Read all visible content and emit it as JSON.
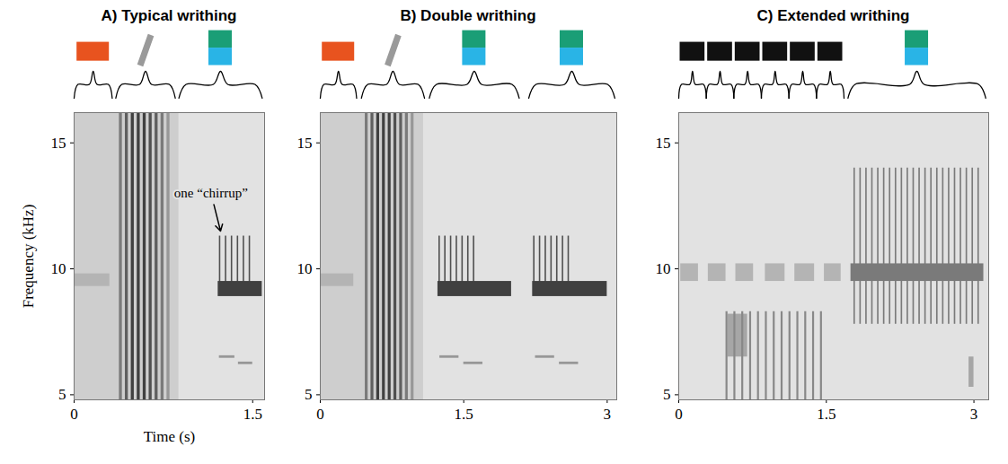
{
  "chart_data": [
    {
      "type": "spectrogram",
      "title": "A) Typical writhing",
      "xlabel": "Time (s)",
      "ylabel": "Frequency (kHz)",
      "xlim": [
        0,
        1.6
      ],
      "xticks": [
        0,
        1.5
      ],
      "ylim": [
        4.8,
        16.2
      ],
      "yticks": [
        5,
        10,
        15
      ],
      "syllables": [
        {
          "t0": 0,
          "t1": 0.32,
          "marker": "rect",
          "color": "#e8531f"
        },
        {
          "t0": 0.35,
          "t1": 0.85,
          "marker": "slash",
          "color": "#9a9a9a"
        },
        {
          "t0": 0.88,
          "t1": 1.58,
          "marker": "stacked",
          "colors": [
            "#1a9e76",
            "#29b4e6"
          ]
        }
      ],
      "annotations": [
        {
          "text": "one “chirrup”",
          "x": 1.15,
          "y": 13.0,
          "arrow_x": 1.23,
          "arrow_y": 11.5
        }
      ],
      "energy": [
        [
          0,
          0.88,
          4.8,
          16.2,
          0.3
        ],
        [
          0,
          0.3,
          9.3,
          9.8,
          0.4
        ],
        [
          0.38,
          0.405,
          4.8,
          16.2,
          0.6
        ],
        [
          0.43,
          0.455,
          4.8,
          16.2,
          0.7
        ],
        [
          0.48,
          0.505,
          4.8,
          16.2,
          0.8
        ],
        [
          0.53,
          0.555,
          4.8,
          16.2,
          0.8
        ],
        [
          0.58,
          0.605,
          4.8,
          16.2,
          0.8
        ],
        [
          0.63,
          0.655,
          4.8,
          16.2,
          0.75
        ],
        [
          0.68,
          0.705,
          4.8,
          16.2,
          0.7
        ],
        [
          0.73,
          0.755,
          4.8,
          16.2,
          0.6
        ],
        [
          0.78,
          0.805,
          4.8,
          16.2,
          0.5
        ],
        [
          1.22,
          1.232,
          9.0,
          11.3,
          0.75
        ],
        [
          1.27,
          1.282,
          9.0,
          11.3,
          0.75
        ],
        [
          1.32,
          1.332,
          9.0,
          11.3,
          0.75
        ],
        [
          1.37,
          1.382,
          9.0,
          11.3,
          0.75
        ],
        [
          1.42,
          1.432,
          9.0,
          11.3,
          0.75
        ],
        [
          1.47,
          1.482,
          9.0,
          11.3,
          0.75
        ],
        [
          1.21,
          1.58,
          8.9,
          9.5,
          0.8
        ],
        [
          1.22,
          1.35,
          6.45,
          6.55,
          0.5
        ],
        [
          1.38,
          1.5,
          6.2,
          6.3,
          0.5
        ]
      ]
    },
    {
      "type": "spectrogram",
      "title": "B) Double writhing",
      "xlim": [
        0,
        3.1
      ],
      "xticks": [
        0,
        1.5,
        3
      ],
      "ylim": [
        4.8,
        16.2
      ],
      "yticks": [
        5,
        10,
        15
      ],
      "syllables": [
        {
          "t0": 0,
          "t1": 0.38,
          "marker": "rect",
          "color": "#e8531f"
        },
        {
          "t0": 0.43,
          "t1": 1.09,
          "marker": "slash",
          "color": "#9a9a9a"
        },
        {
          "t0": 1.14,
          "t1": 2.08,
          "marker": "stacked",
          "colors": [
            "#1a9e76",
            "#29b4e6"
          ]
        },
        {
          "t0": 2.18,
          "t1": 3.08,
          "marker": "stacked",
          "colors": [
            "#1a9e76",
            "#29b4e6"
          ]
        }
      ],
      "energy": [
        [
          0,
          1.08,
          4.8,
          16.2,
          0.3
        ],
        [
          0,
          0.35,
          9.3,
          9.8,
          0.4
        ],
        [
          0.47,
          0.5,
          4.8,
          16.2,
          0.6
        ],
        [
          0.53,
          0.56,
          4.8,
          16.2,
          0.7
        ],
        [
          0.59,
          0.62,
          4.8,
          16.2,
          0.8
        ],
        [
          0.65,
          0.68,
          4.8,
          16.2,
          0.8
        ],
        [
          0.71,
          0.74,
          4.8,
          16.2,
          0.8
        ],
        [
          0.77,
          0.8,
          4.8,
          16.2,
          0.75
        ],
        [
          0.83,
          0.86,
          4.8,
          16.2,
          0.7
        ],
        [
          0.89,
          0.92,
          4.8,
          16.2,
          0.6
        ],
        [
          0.95,
          0.98,
          4.8,
          16.2,
          0.5
        ],
        [
          1.24,
          1.255,
          9.0,
          11.3,
          0.75
        ],
        [
          1.3,
          1.315,
          9.0,
          11.3,
          0.75
        ],
        [
          1.36,
          1.375,
          9.0,
          11.3,
          0.75
        ],
        [
          1.42,
          1.435,
          9.0,
          11.3,
          0.75
        ],
        [
          1.48,
          1.495,
          9.0,
          11.3,
          0.75
        ],
        [
          1.54,
          1.555,
          9.0,
          11.3,
          0.75
        ],
        [
          1.6,
          1.615,
          9.0,
          11.3,
          0.75
        ],
        [
          1.23,
          2.0,
          8.9,
          9.5,
          0.8
        ],
        [
          1.25,
          1.45,
          6.45,
          6.55,
          0.5
        ],
        [
          1.5,
          1.7,
          6.2,
          6.3,
          0.5
        ],
        [
          2.23,
          2.245,
          9.0,
          11.3,
          0.75
        ],
        [
          2.29,
          2.305,
          9.0,
          11.3,
          0.75
        ],
        [
          2.35,
          2.365,
          9.0,
          11.3,
          0.75
        ],
        [
          2.41,
          2.425,
          9.0,
          11.3,
          0.75
        ],
        [
          2.47,
          2.485,
          9.0,
          11.3,
          0.75
        ],
        [
          2.53,
          2.545,
          9.0,
          11.3,
          0.75
        ],
        [
          2.59,
          2.605,
          9.0,
          11.3,
          0.75
        ],
        [
          2.22,
          3.0,
          8.9,
          9.5,
          0.8
        ],
        [
          2.25,
          2.45,
          6.45,
          6.55,
          0.5
        ],
        [
          2.5,
          2.7,
          6.2,
          6.3,
          0.5
        ]
      ]
    },
    {
      "type": "spectrogram",
      "title": "C) Extended writhing",
      "xlim": [
        0,
        3.15
      ],
      "xticks": [
        0,
        1.5,
        3
      ],
      "ylim": [
        4.8,
        16.2
      ],
      "yticks": [
        5,
        10,
        15
      ],
      "syllables": [
        {
          "t0": 0,
          "t1": 0.28,
          "marker": "rect",
          "color": "#111111"
        },
        {
          "t0": 0.28,
          "t1": 0.56,
          "marker": "rect",
          "color": "#111111"
        },
        {
          "t0": 0.56,
          "t1": 0.84,
          "marker": "rect",
          "color": "#111111"
        },
        {
          "t0": 0.84,
          "t1": 1.12,
          "marker": "rect",
          "color": "#111111"
        },
        {
          "t0": 1.12,
          "t1": 1.4,
          "marker": "rect",
          "color": "#111111"
        },
        {
          "t0": 1.4,
          "t1": 1.68,
          "marker": "rect",
          "color": "#111111"
        },
        {
          "t0": 1.72,
          "t1": 3.12,
          "marker": "stacked",
          "colors": [
            "#1a9e76",
            "#29b4e6"
          ]
        }
      ],
      "energy": [
        [
          0.02,
          0.2,
          9.5,
          10.2,
          0.4
        ],
        [
          0.3,
          0.48,
          9.5,
          10.2,
          0.4
        ],
        [
          0.58,
          0.76,
          9.5,
          10.2,
          0.4
        ],
        [
          0.88,
          1.08,
          9.5,
          10.2,
          0.4
        ],
        [
          1.18,
          1.38,
          9.5,
          10.2,
          0.4
        ],
        [
          1.48,
          1.65,
          9.5,
          10.2,
          0.4
        ],
        [
          0.5,
          0.7,
          6.5,
          8.2,
          0.45
        ],
        [
          0.48,
          0.5,
          4.8,
          8.3,
          0.55
        ],
        [
          0.56,
          0.58,
          4.8,
          8.3,
          0.55
        ],
        [
          0.64,
          0.66,
          4.8,
          8.3,
          0.55
        ],
        [
          0.72,
          0.74,
          4.8,
          8.3,
          0.55
        ],
        [
          0.8,
          0.82,
          4.8,
          8.3,
          0.55
        ],
        [
          0.88,
          0.9,
          4.8,
          8.3,
          0.55
        ],
        [
          0.96,
          0.98,
          4.8,
          8.3,
          0.55
        ],
        [
          1.04,
          1.06,
          4.8,
          8.3,
          0.55
        ],
        [
          1.12,
          1.14,
          4.8,
          8.3,
          0.55
        ],
        [
          1.2,
          1.22,
          4.8,
          8.3,
          0.55
        ],
        [
          1.28,
          1.3,
          4.8,
          8.3,
          0.55
        ],
        [
          1.36,
          1.38,
          4.8,
          8.3,
          0.55
        ],
        [
          1.44,
          1.46,
          4.8,
          8.3,
          0.55
        ],
        [
          1.78,
          1.795,
          7.8,
          14.0,
          0.6
        ],
        [
          1.84,
          1.855,
          7.8,
          14.0,
          0.6
        ],
        [
          1.9,
          1.915,
          7.8,
          14.0,
          0.6
        ],
        [
          1.96,
          1.975,
          7.8,
          14.0,
          0.6
        ],
        [
          2.02,
          2.035,
          7.8,
          14.0,
          0.6
        ],
        [
          2.08,
          2.095,
          7.8,
          14.0,
          0.6
        ],
        [
          2.14,
          2.155,
          7.8,
          14.0,
          0.6
        ],
        [
          2.2,
          2.215,
          7.8,
          14.0,
          0.6
        ],
        [
          2.26,
          2.275,
          7.8,
          14.0,
          0.6
        ],
        [
          2.32,
          2.335,
          7.8,
          14.0,
          0.6
        ],
        [
          2.38,
          2.395,
          7.8,
          14.0,
          0.6
        ],
        [
          2.44,
          2.455,
          7.8,
          14.0,
          0.6
        ],
        [
          2.5,
          2.515,
          7.8,
          14.0,
          0.6
        ],
        [
          2.56,
          2.575,
          7.8,
          14.0,
          0.6
        ],
        [
          2.62,
          2.635,
          7.8,
          14.0,
          0.6
        ],
        [
          2.68,
          2.695,
          7.8,
          14.0,
          0.6
        ],
        [
          2.74,
          2.755,
          7.8,
          14.0,
          0.6
        ],
        [
          2.8,
          2.815,
          7.8,
          14.0,
          0.6
        ],
        [
          2.86,
          2.875,
          7.8,
          14.0,
          0.6
        ],
        [
          2.92,
          2.935,
          7.8,
          14.0,
          0.6
        ],
        [
          2.98,
          2.995,
          7.8,
          14.0,
          0.6
        ],
        [
          3.04,
          3.055,
          7.8,
          14.0,
          0.6
        ],
        [
          1.75,
          3.1,
          9.5,
          10.2,
          0.6
        ],
        [
          2.95,
          3.0,
          5.3,
          6.5,
          0.45
        ]
      ]
    }
  ]
}
